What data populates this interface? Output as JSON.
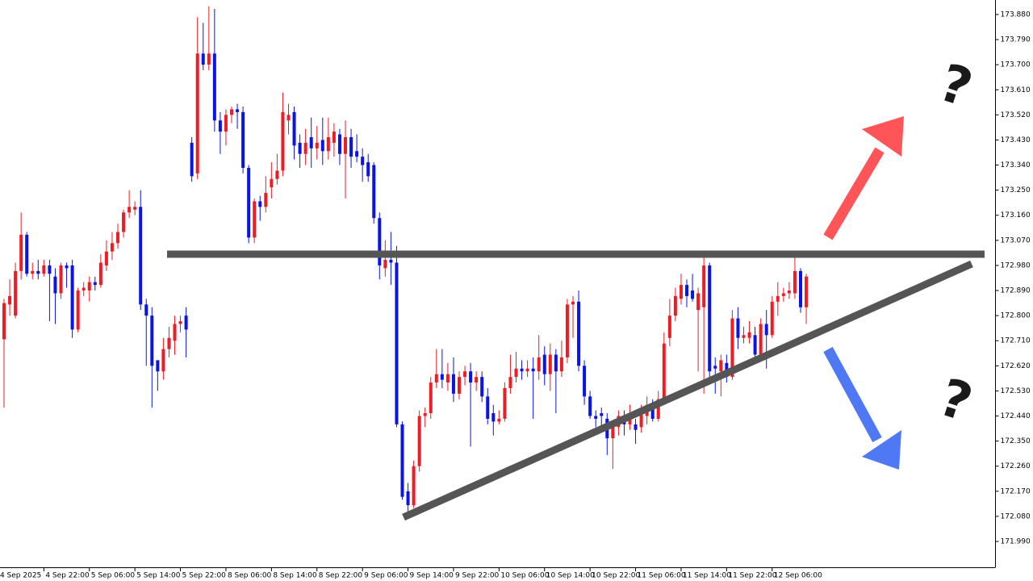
{
  "chart_data": {
    "type": "candlestick",
    "up_color": "#ee1c25",
    "down_color": "#0a14e6",
    "ylim": [
      171.906,
      173.932
    ],
    "yticks": [
      {
        "value": 173.88,
        "label": "173.880"
      },
      {
        "value": 173.79,
        "label": "173.790"
      },
      {
        "value": 173.7,
        "label": "173.700"
      },
      {
        "value": 173.61,
        "label": "173.610"
      },
      {
        "value": 173.52,
        "label": "173.520"
      },
      {
        "value": 173.43,
        "label": "173.430"
      },
      {
        "value": 173.34,
        "label": "173.340"
      },
      {
        "value": 173.25,
        "label": "173.250"
      },
      {
        "value": 173.16,
        "label": "173.160"
      },
      {
        "value": 173.07,
        "label": "173.070"
      },
      {
        "value": 172.98,
        "label": "172.980"
      },
      {
        "value": 172.89,
        "label": "172.890"
      },
      {
        "value": 172.8,
        "label": "172.800"
      },
      {
        "value": 172.71,
        "label": "172.710"
      },
      {
        "value": 172.62,
        "label": "172.620"
      },
      {
        "value": 172.53,
        "label": "172.530"
      },
      {
        "value": 172.44,
        "label": "172.440"
      },
      {
        "value": 172.35,
        "label": "172.350"
      },
      {
        "value": 172.26,
        "label": "172.260"
      },
      {
        "value": 172.17,
        "label": "172.170"
      },
      {
        "value": 172.08,
        "label": "172.080"
      },
      {
        "value": 171.99,
        "label": "171.990"
      }
    ],
    "xticks": [
      {
        "value": -1,
        "label": "4 Sep 2025"
      },
      {
        "value": 7,
        "label": "4 Sep 22:00"
      },
      {
        "value": 15,
        "label": "5 Sep 06:00"
      },
      {
        "value": 23,
        "label": "5 Sep 14:00"
      },
      {
        "value": 31,
        "label": "5 Sep 22:00"
      },
      {
        "value": 39,
        "label": "8 Sep 06:00"
      },
      {
        "value": 47,
        "label": "8 Sep 14:00"
      },
      {
        "value": 55,
        "label": "8 Sep 22:00"
      },
      {
        "value": 63,
        "label": "9 Sep 06:00"
      },
      {
        "value": 71,
        "label": "9 Sep 14:00"
      },
      {
        "value": 79,
        "label": "9 Sep 22:00"
      },
      {
        "value": 87,
        "label": "10 Sep 06:00"
      },
      {
        "value": 95,
        "label": "10 Sep 14:00"
      },
      {
        "value": 103,
        "label": "10 Sep 22:00"
      },
      {
        "value": 111,
        "label": "11 Sep 06:00"
      },
      {
        "value": 119,
        "label": "11 Sep 14:00"
      },
      {
        "value": 127,
        "label": "11 Sep 22:00"
      },
      {
        "value": 135,
        "label": "12 Sep 06:00"
      }
    ],
    "annotations": [
      "?",
      "?"
    ],
    "ohlc": [
      [
        172.715,
        172.86,
        172.47,
        172.845
      ],
      [
        172.84,
        172.93,
        172.8,
        172.87
      ],
      [
        172.8,
        172.99,
        172.79,
        172.96
      ],
      [
        172.96,
        173.17,
        172.93,
        173.09
      ],
      [
        173.09,
        173.1,
        172.94,
        172.95
      ],
      [
        172.95,
        172.99,
        172.93,
        172.96
      ],
      [
        172.96,
        173.0,
        172.93,
        172.95
      ],
      [
        172.95,
        173.0,
        172.94,
        172.98
      ],
      [
        172.98,
        173.0,
        172.78,
        172.95
      ],
      [
        172.94,
        172.97,
        172.77,
        172.88
      ],
      [
        172.88,
        172.99,
        172.86,
        172.98
      ],
      [
        172.98,
        172.99,
        172.9,
        172.97
      ],
      [
        172.98,
        173.0,
        172.72,
        172.75
      ],
      [
        172.75,
        172.9,
        172.74,
        172.89
      ],
      [
        172.89,
        172.92,
        172.87,
        172.9
      ],
      [
        172.89,
        172.94,
        172.85,
        172.92
      ],
      [
        172.92,
        172.94,
        172.89,
        172.91
      ],
      [
        172.91,
        173.02,
        172.9,
        172.99
      ],
      [
        172.98,
        173.07,
        172.96,
        173.03
      ],
      [
        173.03,
        173.1,
        173.0,
        173.06
      ],
      [
        173.06,
        173.13,
        173.04,
        173.1
      ],
      [
        173.1,
        173.18,
        173.08,
        173.17
      ],
      [
        173.17,
        173.25,
        173.15,
        173.19
      ],
      [
        173.18,
        173.21,
        173.16,
        173.19
      ],
      [
        173.19,
        173.25,
        172.82,
        172.84
      ],
      [
        172.84,
        172.86,
        172.62,
        172.8
      ],
      [
        172.8,
        172.83,
        172.47,
        172.62
      ],
      [
        172.64,
        172.64,
        172.53,
        172.6
      ],
      [
        172.6,
        172.72,
        172.57,
        172.68
      ],
      [
        172.68,
        172.76,
        172.65,
        172.72
      ],
      [
        172.71,
        172.8,
        172.66,
        172.77
      ],
      [
        172.77,
        172.8,
        172.74,
        172.78
      ],
      [
        172.8,
        172.83,
        172.65,
        172.75
      ],
      [
        173.42,
        173.44,
        173.28,
        173.3
      ],
      [
        173.31,
        173.87,
        173.29,
        173.74
      ],
      [
        173.74,
        173.85,
        173.68,
        173.7
      ],
      [
        173.7,
        173.91,
        173.68,
        173.74
      ],
      [
        173.74,
        173.9,
        173.46,
        173.5
      ],
      [
        173.5,
        173.53,
        173.38,
        173.46
      ],
      [
        173.46,
        173.54,
        173.41,
        173.52
      ],
      [
        173.52,
        173.55,
        173.49,
        173.54
      ],
      [
        173.54,
        173.56,
        173.47,
        173.53
      ],
      [
        173.53,
        173.55,
        173.31,
        173.33
      ],
      [
        173.33,
        173.34,
        173.06,
        173.08
      ],
      [
        173.08,
        173.22,
        173.06,
        173.21
      ],
      [
        173.21,
        173.23,
        173.14,
        173.19
      ],
      [
        173.19,
        173.3,
        173.17,
        173.24
      ],
      [
        173.26,
        173.35,
        173.22,
        173.29
      ],
      [
        173.29,
        173.38,
        173.27,
        173.32
      ],
      [
        173.32,
        173.6,
        173.3,
        173.53
      ],
      [
        173.5,
        173.56,
        173.45,
        173.52
      ],
      [
        173.53,
        173.55,
        173.36,
        173.41
      ],
      [
        173.42,
        173.45,
        173.33,
        173.38
      ],
      [
        173.38,
        173.47,
        173.34,
        173.42
      ],
      [
        173.44,
        173.51,
        173.33,
        173.4
      ],
      [
        173.4,
        173.48,
        173.36,
        173.42
      ],
      [
        173.43,
        173.51,
        173.34,
        173.39
      ],
      [
        173.39,
        173.51,
        173.36,
        173.44
      ],
      [
        173.42,
        173.49,
        173.37,
        173.46
      ],
      [
        173.45,
        173.47,
        173.34,
        173.38
      ],
      [
        173.38,
        173.5,
        173.22,
        173.44
      ],
      [
        173.44,
        173.47,
        173.33,
        173.37
      ],
      [
        173.39,
        173.45,
        173.35,
        173.37
      ],
      [
        173.37,
        173.4,
        173.28,
        173.34
      ],
      [
        173.35,
        173.38,
        173.28,
        173.3
      ],
      [
        173.34,
        173.35,
        173.13,
        173.15
      ],
      [
        173.15,
        173.17,
        172.93,
        172.98
      ],
      [
        172.97,
        173.07,
        172.94,
        173.0
      ],
      [
        173.0,
        173.1,
        172.91,
        172.99
      ],
      [
        172.99,
        173.05,
        172.4,
        172.41
      ],
      [
        172.41,
        172.42,
        172.14,
        172.15
      ],
      [
        172.17,
        172.2,
        172.09,
        172.12
      ],
      [
        172.12,
        172.28,
        172.11,
        172.26
      ],
      [
        172.26,
        172.46,
        172.24,
        172.44
      ],
      [
        172.44,
        172.47,
        172.4,
        172.45
      ],
      [
        172.45,
        172.58,
        172.43,
        172.56
      ],
      [
        172.56,
        172.68,
        172.54,
        172.59
      ],
      [
        172.59,
        172.68,
        172.54,
        172.57
      ],
      [
        172.56,
        172.63,
        172.53,
        172.59
      ],
      [
        172.59,
        172.65,
        172.49,
        172.52
      ],
      [
        172.52,
        172.6,
        172.5,
        172.58
      ],
      [
        172.58,
        172.62,
        172.55,
        172.6
      ],
      [
        172.6,
        172.63,
        172.33,
        172.56
      ],
      [
        172.56,
        172.6,
        172.53,
        172.58
      ],
      [
        172.58,
        172.6,
        172.49,
        172.51
      ],
      [
        172.51,
        172.54,
        172.41,
        172.43
      ],
      [
        172.45,
        172.48,
        172.37,
        172.42
      ],
      [
        172.42,
        172.46,
        172.41,
        172.43
      ],
      [
        172.43,
        172.56,
        172.42,
        172.54
      ],
      [
        172.54,
        172.66,
        172.52,
        172.58
      ],
      [
        172.58,
        172.67,
        172.56,
        172.61
      ],
      [
        172.61,
        172.64,
        172.57,
        172.6
      ],
      [
        172.6,
        172.64,
        172.58,
        172.61
      ],
      [
        172.61,
        172.65,
        172.43,
        172.6
      ],
      [
        172.6,
        172.73,
        172.57,
        172.65
      ],
      [
        172.66,
        172.69,
        172.55,
        172.59
      ],
      [
        172.59,
        172.7,
        172.53,
        172.66
      ],
      [
        172.66,
        172.68,
        172.45,
        172.6
      ],
      [
        172.6,
        172.71,
        172.58,
        172.65
      ],
      [
        172.65,
        172.86,
        172.63,
        172.84
      ],
      [
        172.84,
        172.87,
        172.72,
        172.85
      ],
      [
        172.85,
        172.89,
        172.6,
        172.62
      ],
      [
        172.62,
        172.64,
        172.48,
        172.51
      ],
      [
        172.51,
        172.53,
        172.43,
        172.44
      ],
      [
        172.44,
        172.46,
        172.4,
        172.43
      ],
      [
        172.45,
        172.47,
        172.39,
        172.44
      ],
      [
        172.43,
        172.45,
        172.3,
        172.36
      ],
      [
        172.36,
        172.42,
        172.25,
        172.41
      ],
      [
        172.4,
        172.46,
        172.37,
        172.44
      ],
      [
        172.43,
        172.46,
        172.37,
        172.41
      ],
      [
        172.41,
        172.48,
        172.39,
        172.43
      ],
      [
        172.41,
        172.43,
        172.34,
        172.39
      ],
      [
        172.4,
        172.48,
        172.38,
        172.46
      ],
      [
        172.44,
        172.51,
        172.41,
        172.48
      ],
      [
        172.47,
        172.5,
        172.42,
        172.43
      ],
      [
        172.43,
        172.53,
        172.42,
        172.5
      ],
      [
        172.5,
        172.74,
        172.49,
        172.7
      ],
      [
        172.72,
        172.86,
        172.69,
        172.8
      ],
      [
        172.8,
        172.9,
        172.78,
        172.87
      ],
      [
        172.86,
        172.95,
        172.84,
        172.91
      ],
      [
        172.91,
        172.93,
        172.83,
        172.87
      ],
      [
        172.89,
        172.95,
        172.85,
        172.86
      ],
      [
        172.82,
        172.9,
        172.6,
        172.88
      ],
      [
        172.83,
        173.03,
        172.52,
        172.98
      ],
      [
        172.98,
        172.99,
        172.58,
        172.6
      ],
      [
        172.62,
        172.65,
        172.52,
        172.61
      ],
      [
        172.6,
        172.66,
        172.51,
        172.64
      ],
      [
        172.63,
        172.66,
        172.56,
        172.58
      ],
      [
        172.58,
        172.82,
        172.57,
        172.79
      ],
      [
        172.79,
        172.83,
        172.68,
        172.72
      ],
      [
        172.72,
        172.76,
        172.7,
        172.73
      ],
      [
        172.72,
        172.78,
        172.7,
        172.74
      ],
      [
        172.73,
        172.76,
        172.64,
        172.66
      ],
      [
        172.66,
        172.79,
        172.64,
        172.77
      ],
      [
        172.77,
        172.82,
        172.61,
        172.73
      ],
      [
        172.73,
        172.87,
        172.72,
        172.85
      ],
      [
        172.85,
        172.92,
        172.8,
        172.87
      ],
      [
        172.87,
        172.9,
        172.85,
        172.88
      ],
      [
        172.88,
        172.92,
        172.86,
        172.89
      ],
      [
        172.88,
        173.01,
        172.86,
        172.96
      ],
      [
        172.96,
        172.97,
        172.81,
        172.83
      ],
      [
        172.83,
        172.95,
        172.77,
        172.94
      ]
    ]
  }
}
